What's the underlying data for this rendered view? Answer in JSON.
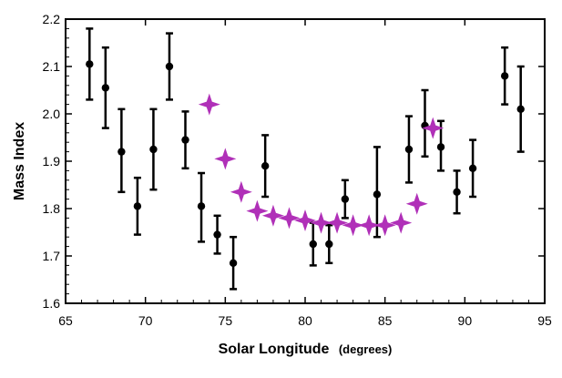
{
  "chart_data": {
    "type": "scatter",
    "xlabel": "Solar Longitude",
    "xlabel_unit": "(degrees)",
    "ylabel": "Mass Index",
    "xlim": [
      65,
      95
    ],
    "ylim": [
      1.6,
      2.2
    ],
    "x_ticks": [
      "65",
      "70",
      "75",
      "80",
      "85",
      "90",
      "95"
    ],
    "y_ticks": [
      "1.6",
      "1.7",
      "1.8",
      "1.9",
      "2.0",
      "2.1",
      "2.2"
    ],
    "grid": false,
    "colors": {
      "series1": "#000000",
      "series2": "#b030b8"
    },
    "series": [
      {
        "marker": "circle-with-error-bars",
        "points": [
          {
            "x": 66.5,
            "y": 2.105,
            "low": 2.03,
            "high": 2.18
          },
          {
            "x": 67.5,
            "y": 2.055,
            "low": 1.97,
            "high": 2.14
          },
          {
            "x": 68.5,
            "y": 1.92,
            "low": 1.835,
            "high": 2.01
          },
          {
            "x": 69.5,
            "y": 1.805,
            "low": 1.745,
            "high": 1.865
          },
          {
            "x": 70.5,
            "y": 1.925,
            "low": 1.84,
            "high": 2.01
          },
          {
            "x": 71.5,
            "y": 2.1,
            "low": 2.03,
            "high": 2.17
          },
          {
            "x": 72.5,
            "y": 1.945,
            "low": 1.885,
            "high": 2.005
          },
          {
            "x": 73.5,
            "y": 1.805,
            "low": 1.73,
            "high": 1.875
          },
          {
            "x": 74.5,
            "y": 1.745,
            "low": 1.705,
            "high": 1.785
          },
          {
            "x": 75.5,
            "y": 1.685,
            "low": 1.63,
            "high": 1.74
          },
          {
            "x": 77.5,
            "y": 1.89,
            "low": 1.825,
            "high": 1.955
          },
          {
            "x": 80.5,
            "y": 1.725,
            "low": 1.68,
            "high": 1.77
          },
          {
            "x": 81.5,
            "y": 1.725,
            "low": 1.685,
            "high": 1.765
          },
          {
            "x": 82.5,
            "y": 1.82,
            "low": 1.78,
            "high": 1.86
          },
          {
            "x": 84.5,
            "y": 1.83,
            "low": 1.74,
            "high": 1.93
          },
          {
            "x": 86.5,
            "y": 1.925,
            "low": 1.855,
            "high": 1.995
          },
          {
            "x": 87.5,
            "y": 1.975,
            "low": 1.91,
            "high": 2.05
          },
          {
            "x": 88.5,
            "y": 1.93,
            "low": 1.88,
            "high": 1.985
          },
          {
            "x": 89.5,
            "y": 1.835,
            "low": 1.79,
            "high": 1.88
          },
          {
            "x": 90.5,
            "y": 1.885,
            "low": 1.825,
            "high": 1.945
          },
          {
            "x": 92.5,
            "y": 2.08,
            "low": 2.02,
            "high": 2.14
          },
          {
            "x": 93.5,
            "y": 2.01,
            "low": 1.92,
            "high": 2.1
          }
        ]
      },
      {
        "marker": "four-point-star",
        "points": [
          {
            "x": 74.0,
            "y": 2.02
          },
          {
            "x": 75.0,
            "y": 1.905
          },
          {
            "x": 76.0,
            "y": 1.835
          },
          {
            "x": 77.0,
            "y": 1.795
          },
          {
            "x": 78.0,
            "y": 1.785
          },
          {
            "x": 79.0,
            "y": 1.78
          },
          {
            "x": 80.0,
            "y": 1.775
          },
          {
            "x": 81.0,
            "y": 1.77
          },
          {
            "x": 82.0,
            "y": 1.77
          },
          {
            "x": 83.0,
            "y": 1.765
          },
          {
            "x": 84.0,
            "y": 1.765
          },
          {
            "x": 85.0,
            "y": 1.765
          },
          {
            "x": 86.0,
            "y": 1.77
          },
          {
            "x": 87.0,
            "y": 1.81
          },
          {
            "x": 88.0,
            "y": 1.97
          }
        ]
      }
    ]
  }
}
